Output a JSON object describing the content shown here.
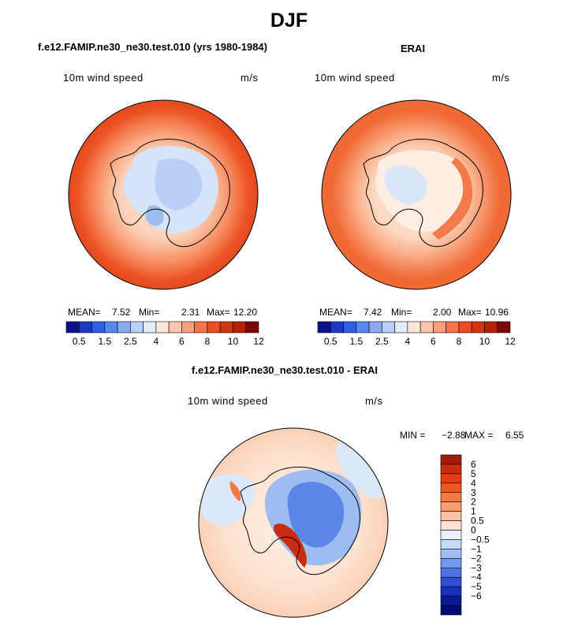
{
  "figure_title": "DJF",
  "panels": [
    {
      "title": "f.e12.FAMIP.ne30_ne30.test.010 (yrs 1980-1984)",
      "variable": "10m wind speed",
      "units": "m/s",
      "stats": {
        "mean_label": "MEAN=",
        "mean": "7.52",
        "min_label": "Min=",
        "min": "2.31",
        "max_label": "Max=",
        "max": "12.20"
      }
    },
    {
      "title": "ERAI",
      "variable": "10m wind speed",
      "units": "m/s",
      "stats": {
        "mean_label": "MEAN=",
        "mean": "7.42",
        "min_label": "Min=",
        "min": "2.00",
        "max_label": "Max=",
        "max": "10.96"
      }
    },
    {
      "title": "f.e12.FAMIP.ne30_ne30.test.010 - ERAI",
      "variable": "10m wind speed",
      "units": "m/s",
      "stats": {
        "min_label": "MIN =",
        "min": "−2.88",
        "max_label": "MAX =",
        "max": "6.55"
      }
    }
  ],
  "colorbars": {
    "abs": {
      "colors": [
        "#0a1486",
        "#1c39c4",
        "#2f5fe4",
        "#5a86f0",
        "#8aabf4",
        "#b8cff7",
        "#e2ecfa",
        "#fde7db",
        "#fcc7ad",
        "#faa07f",
        "#f6744f",
        "#ec4d26",
        "#d53412",
        "#b02309",
        "#7a0a04"
      ],
      "ticks": [
        "0.5",
        "1.5",
        "2.5",
        "4",
        "6",
        "8",
        "10",
        "12"
      ]
    },
    "diff": {
      "colors_top_to_bottom": [
        "#a11d0a",
        "#c92c0f",
        "#e03d14",
        "#f0571e",
        "#f6793f",
        "#f99d70",
        "#fbc3a3",
        "#fde3d2",
        "#e9f0fb",
        "#c7daf6",
        "#9dbcf0",
        "#7399ea",
        "#4d74e4",
        "#2f4fd6",
        "#1a2fbe",
        "#0c1a9a",
        "#040a70"
      ],
      "ticks": [
        "6",
        "5",
        "4",
        "3",
        "2",
        "1",
        "0.5",
        "0",
        "−0.5",
        "−1",
        "−2",
        "−3",
        "−4",
        "−5",
        "−6"
      ]
    }
  },
  "chart_data": [
    {
      "type": "heatmap",
      "title": "f.e12.FAMIP.ne30_ne30.test.010 (yrs 1980-1984)",
      "projection": "south polar stereographic",
      "variable": "10m wind speed",
      "units": "m/s",
      "mean": 7.52,
      "min": 2.31,
      "max": 12.2,
      "contour_levels": [
        0.5,
        1,
        1.5,
        2,
        2.5,
        3,
        4,
        5,
        6,
        7,
        8,
        9,
        10,
        11,
        12
      ],
      "pattern": "weak winds (2-4 m/s) over East Antarctic plateau interior, 6-8 m/s over sea-ice zone, 10-12 m/s westerlies in outer ring near 50S"
    },
    {
      "type": "heatmap",
      "title": "ERAI",
      "projection": "south polar stereographic",
      "variable": "10m wind speed",
      "units": "m/s",
      "mean": 7.42,
      "min": 2.0,
      "max": 10.96,
      "contour_levels": [
        0.5,
        1,
        1.5,
        2,
        2.5,
        3,
        4,
        5,
        6,
        7,
        8,
        9,
        10,
        11,
        12
      ],
      "pattern": "weak winds over plateau interior, strong katabatic winds on coastal slopes, 9-11 m/s westerlies in outer ring"
    },
    {
      "type": "heatmap",
      "title": "f.e12.FAMIP.ne30_ne30.test.010 - ERAI",
      "projection": "south polar stereographic",
      "variable": "10m wind speed",
      "units": "m/s",
      "min": -2.88,
      "max": 6.55,
      "contour_levels": [
        -6,
        -5,
        -4,
        -3,
        -2,
        -1,
        -0.5,
        0,
        0.5,
        1,
        2,
        3,
        4,
        5,
        6
      ],
      "pattern": "model weaker (-1 to -2) over East Antarctic interior, stronger (+2 to +6) along Ross Ice Shelf edge and Antarctic Peninsula, near zero over ocean"
    }
  ]
}
